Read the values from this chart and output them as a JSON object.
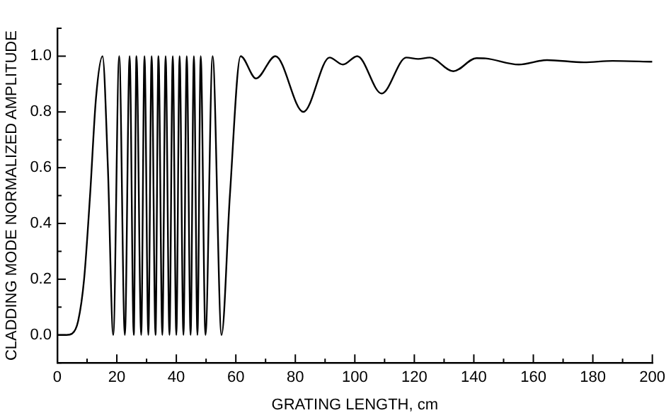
{
  "chart_data": {
    "type": "line",
    "xlabel": "GRATING LENGTH, cm",
    "ylabel": "CLADDING MODE NORMALIZED AMPLITUDE",
    "xlim": [
      0,
      200
    ],
    "xticks": [
      0,
      {
        "value": 10,
        "label": null
      },
      20,
      {
        "value": 30,
        "label": null
      },
      40,
      {
        "value": 50,
        "label": null
      },
      60,
      {
        "value": 70,
        "label": null
      },
      80,
      {
        "value": 90,
        "label": null
      },
      100,
      {
        "value": 110,
        "label": null
      },
      120,
      {
        "value": 130,
        "label": null
      },
      140,
      {
        "value": 150,
        "label": null
      },
      160,
      {
        "value": 170,
        "label": null
      },
      180,
      {
        "value": 190,
        "label": null
      },
      200
    ],
    "ylim": [
      -0.1,
      1.1
    ],
    "yticks": [
      {
        "value": -0.1,
        "label": null
      },
      {
        "value": 0,
        "label": "0.0"
      },
      {
        "value": 0.1,
        "label": null
      },
      0.2,
      {
        "value": 0.3,
        "label": null
      },
      0.4,
      {
        "value": 0.5,
        "label": null
      },
      0.6,
      {
        "value": 0.7,
        "label": null
      },
      0.8,
      {
        "value": 0.9,
        "label": null
      },
      {
        "value": 1,
        "label": "1.0"
      },
      {
        "value": 1.1,
        "label": null
      }
    ],
    "grid": false,
    "legend": false,
    "marker": "none",
    "line_style": "solid",
    "series": [
      {
        "color": "#000000",
        "x": [
          0,
          3,
          5,
          7,
          9,
          11,
          13,
          15.2,
          17,
          18.8,
          20.8,
          22.7,
          24.3,
          25.7,
          26.6,
          28.2,
          29.3,
          30.6,
          31.7,
          33.0,
          34.0,
          35.3,
          36.4,
          37.7,
          38.8,
          40.0,
          41.1,
          42.4,
          43.5,
          44.8,
          45.9,
          47.1,
          48.2,
          49.8,
          52.2,
          55.2,
          58,
          61.6,
          66.8,
          73.3,
          82.7,
          91.5,
          96,
          100.8,
          109,
          117.3,
          121.3,
          125.2,
          133.1,
          140.9,
          144,
          155.1,
          164.6,
          177,
          186.6,
          200
        ],
        "values": [
          0,
          0,
          0.005,
          0.05,
          0.2,
          0.5,
          0.85,
          1,
          0.6,
          0,
          1,
          0,
          1,
          0,
          1,
          0,
          1,
          0,
          1,
          0,
          1,
          0,
          1,
          0,
          1,
          0,
          1,
          0,
          1,
          0,
          1,
          0,
          1,
          0,
          1,
          0,
          0.5,
          1,
          0.92,
          1,
          0.8,
          0.995,
          0.97,
          1,
          0.866,
          0.995,
          0.99,
          0.995,
          0.946,
          0.993,
          0.992,
          0.97,
          0.986,
          0.978,
          0.983,
          0.98
        ]
      }
    ]
  }
}
